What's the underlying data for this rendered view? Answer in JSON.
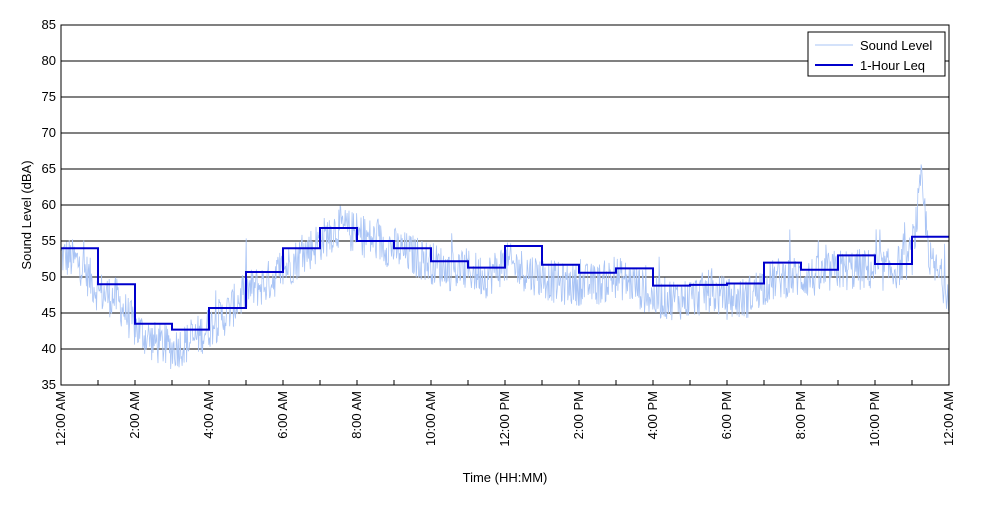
{
  "chart_data": {
    "type": "line",
    "title": "",
    "xlabel": "Time (HH:MM)",
    "ylabel": "Sound Level (dBA)",
    "xlim": [
      0,
      24
    ],
    "ylim": [
      35,
      85
    ],
    "y_ticks": [
      35,
      40,
      45,
      50,
      55,
      60,
      65,
      70,
      75,
      80,
      85
    ],
    "x_ticks": [
      {
        "hour": 0,
        "label": "12:00 AM"
      },
      {
        "hour": 2,
        "label": "2:00 AM"
      },
      {
        "hour": 4,
        "label": "4:00 AM"
      },
      {
        "hour": 6,
        "label": "6:00 AM"
      },
      {
        "hour": 8,
        "label": "8:00 AM"
      },
      {
        "hour": 10,
        "label": "10:00 AM"
      },
      {
        "hour": 12,
        "label": "12:00 PM"
      },
      {
        "hour": 14,
        "label": "2:00 PM"
      },
      {
        "hour": 16,
        "label": "4:00 PM"
      },
      {
        "hour": 18,
        "label": "6:00 PM"
      },
      {
        "hour": 20,
        "label": "8:00 PM"
      },
      {
        "hour": 22,
        "label": "10:00 PM"
      },
      {
        "hour": 24,
        "label": "12:00 AM"
      }
    ],
    "minor_x_ticks": [
      1,
      3,
      5,
      7,
      9,
      11,
      13,
      15,
      17,
      19,
      21,
      23
    ],
    "grid": "horizontal",
    "legend": {
      "placement": "top-right"
    },
    "series": [
      {
        "name": "Sound Level",
        "color": "#a9c4f5",
        "style": "thin-noisy",
        "x": [
          0,
          0.5,
          1,
          1.5,
          2,
          2.5,
          3,
          3.5,
          4,
          4.5,
          5,
          5.5,
          6,
          6.5,
          7,
          7.5,
          8,
          8.5,
          9,
          9.5,
          10,
          10.5,
          11,
          11.5,
          12,
          12.5,
          13,
          13.5,
          14,
          14.5,
          15,
          15.5,
          16,
          16.5,
          17,
          17.5,
          18,
          18.5,
          19,
          19.5,
          20,
          20.5,
          21,
          21.5,
          22,
          22.5,
          23,
          23.25,
          23.5,
          24
        ],
        "y": [
          53,
          52,
          48,
          47,
          43,
          41,
          40,
          41,
          43,
          45,
          48,
          49,
          51,
          53,
          55,
          57,
          56,
          55,
          54,
          53,
          52,
          51,
          51,
          50,
          52,
          51,
          50,
          49,
          49,
          49,
          50,
          49,
          47,
          47,
          47,
          48,
          47,
          47,
          49,
          50,
          50,
          50,
          51,
          51,
          51,
          51,
          53,
          63,
          52,
          48
        ]
      },
      {
        "name": "1-Hour Leq",
        "color": "#0000cc",
        "style": "step",
        "x": [
          0,
          1,
          2,
          3,
          4,
          5,
          6,
          7,
          8,
          9,
          10,
          11,
          12,
          13,
          14,
          15,
          16,
          17,
          18,
          19,
          20,
          21,
          22,
          23,
          24
        ],
        "y": [
          54,
          49,
          43.5,
          42.7,
          45.7,
          50.7,
          54,
          56.8,
          55,
          54,
          52.2,
          51.3,
          54.3,
          51.7,
          50.6,
          51.2,
          48.8,
          48.9,
          49.1,
          52,
          51,
          53,
          51.8,
          55.6,
          55.6
        ]
      }
    ]
  }
}
